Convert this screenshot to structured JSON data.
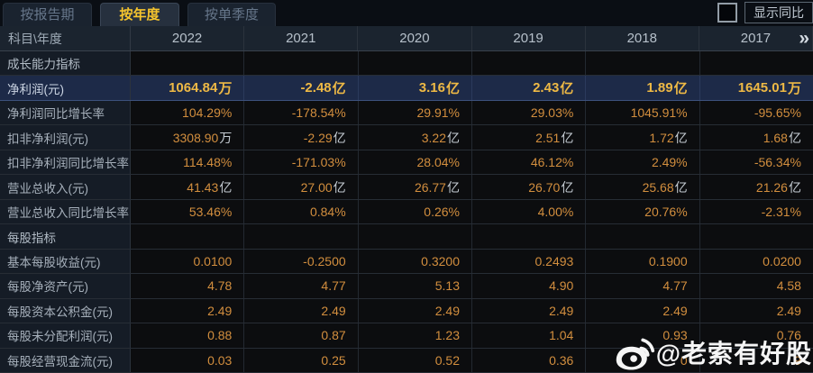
{
  "tabs": [
    {
      "label": "按报告期",
      "active": false
    },
    {
      "label": "按年度",
      "active": true
    },
    {
      "label": "按单季度",
      "active": false
    }
  ],
  "controls": {
    "show_yoy_label": "显示同比",
    "checkbox_checked": false
  },
  "table": {
    "corner_label": "科目\\年度",
    "year_columns": [
      "2022",
      "2021",
      "2020",
      "2019",
      "2018",
      "2017"
    ],
    "more_icon": "»",
    "rows": [
      {
        "type": "section",
        "label": "成长能力指标"
      },
      {
        "type": "data",
        "label": "净利润(元)",
        "highlight": true,
        "cells": [
          {
            "v": "1064.84",
            "u": "万"
          },
          {
            "v": "-2.48",
            "u": "亿"
          },
          {
            "v": "3.16",
            "u": "亿"
          },
          {
            "v": "2.43",
            "u": "亿"
          },
          {
            "v": "1.89",
            "u": "亿"
          },
          {
            "v": "1645.01",
            "u": "万"
          }
        ]
      },
      {
        "type": "data",
        "label": "净利润同比增长率",
        "cells": [
          {
            "v": "104.29%"
          },
          {
            "v": "-178.54%"
          },
          {
            "v": "29.91%"
          },
          {
            "v": "29.03%"
          },
          {
            "v": "1045.91%"
          },
          {
            "v": "-95.65%"
          }
        ]
      },
      {
        "type": "data",
        "label": "扣非净利润(元)",
        "cells": [
          {
            "v": "3308.90",
            "u": "万"
          },
          {
            "v": "-2.29",
            "u": "亿"
          },
          {
            "v": "3.22",
            "u": "亿"
          },
          {
            "v": "2.51",
            "u": "亿"
          },
          {
            "v": "1.72",
            "u": "亿"
          },
          {
            "v": "1.68",
            "u": "亿"
          }
        ]
      },
      {
        "type": "data",
        "label": "扣非净利润同比增长率",
        "cells": [
          {
            "v": "114.48%"
          },
          {
            "v": "-171.03%"
          },
          {
            "v": "28.04%"
          },
          {
            "v": "46.12%"
          },
          {
            "v": "2.49%"
          },
          {
            "v": "-56.34%"
          }
        ]
      },
      {
        "type": "data",
        "label": "营业总收入(元)",
        "cells": [
          {
            "v": "41.43",
            "u": "亿"
          },
          {
            "v": "27.00",
            "u": "亿"
          },
          {
            "v": "26.77",
            "u": "亿"
          },
          {
            "v": "26.70",
            "u": "亿"
          },
          {
            "v": "25.68",
            "u": "亿"
          },
          {
            "v": "21.26",
            "u": "亿"
          }
        ]
      },
      {
        "type": "data",
        "label": "营业总收入同比增长率",
        "cells": [
          {
            "v": "53.46%"
          },
          {
            "v": "0.84%"
          },
          {
            "v": "0.26%"
          },
          {
            "v": "4.00%"
          },
          {
            "v": "20.76%"
          },
          {
            "v": "-2.31%"
          }
        ]
      },
      {
        "type": "section",
        "label": "每股指标"
      },
      {
        "type": "data",
        "label": "基本每股收益(元)",
        "cells": [
          {
            "v": "0.0100"
          },
          {
            "v": "-0.2500"
          },
          {
            "v": "0.3200"
          },
          {
            "v": "0.2493"
          },
          {
            "v": "0.1900"
          },
          {
            "v": "0.0200"
          }
        ]
      },
      {
        "type": "data",
        "label": "每股净资产(元)",
        "cells": [
          {
            "v": "4.78"
          },
          {
            "v": "4.77"
          },
          {
            "v": "5.13"
          },
          {
            "v": "4.90"
          },
          {
            "v": "4.77"
          },
          {
            "v": "4.58"
          }
        ]
      },
      {
        "type": "data",
        "label": "每股资本公积金(元)",
        "cells": [
          {
            "v": "2.49"
          },
          {
            "v": "2.49"
          },
          {
            "v": "2.49"
          },
          {
            "v": "2.49"
          },
          {
            "v": "2.49"
          },
          {
            "v": "2.49"
          }
        ]
      },
      {
        "type": "data",
        "label": "每股未分配利润(元)",
        "cells": [
          {
            "v": "0.88"
          },
          {
            "v": "0.87"
          },
          {
            "v": "1.23"
          },
          {
            "v": "1.04"
          },
          {
            "v": "0.93"
          },
          {
            "v": "0.76"
          }
        ]
      },
      {
        "type": "data",
        "label": "每股经营现金流(元)",
        "cells": [
          {
            "v": "0.03"
          },
          {
            "v": "0.25"
          },
          {
            "v": "0.52"
          },
          {
            "v": "0.36"
          },
          {
            "v": "0"
          },
          {
            "v": "9"
          }
        ]
      }
    ]
  },
  "watermark": {
    "text": "@老索有好股",
    "logo": "weibo"
  },
  "colors": {
    "accent": "#f6c52e",
    "value": "#d28e3e",
    "value-unit": "#c6cdd4",
    "highlight-bg": "#1d2a48",
    "highlight-text": "#eeb945",
    "panel-bg": "#0a0e14",
    "header-bg": "#1b242f",
    "label-bg": "#151c26",
    "cell-bg": "#0c0d0f"
  }
}
